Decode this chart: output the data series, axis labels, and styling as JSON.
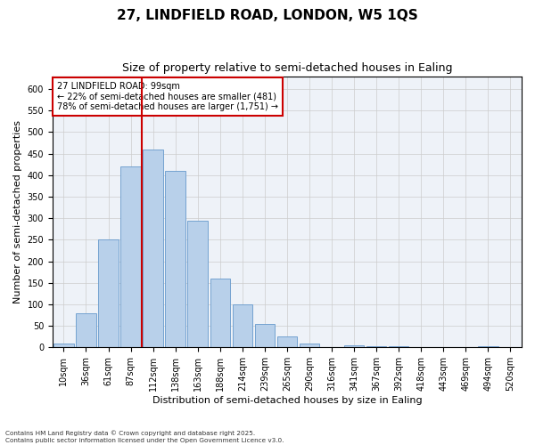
{
  "title_line1": "27, LINDFIELD ROAD, LONDON, W5 1QS",
  "title_line2": "Size of property relative to semi-detached houses in Ealing",
  "xlabel": "Distribution of semi-detached houses by size in Ealing",
  "ylabel": "Number of semi-detached properties",
  "categories": [
    "10sqm",
    "36sqm",
    "61sqm",
    "87sqm",
    "112sqm",
    "138sqm",
    "163sqm",
    "188sqm",
    "214sqm",
    "239sqm",
    "265sqm",
    "290sqm",
    "316sqm",
    "341sqm",
    "367sqm",
    "392sqm",
    "418sqm",
    "443sqm",
    "469sqm",
    "494sqm",
    "520sqm"
  ],
  "bar_heights": [
    8,
    80,
    250,
    420,
    460,
    410,
    295,
    160,
    100,
    55,
    25,
    10,
    0,
    5,
    3,
    3,
    0,
    0,
    0,
    3,
    0
  ],
  "bar_color": "#b8d0ea",
  "bar_edge_color": "#6699cc",
  "grid_color": "#cccccc",
  "bg_color": "#eef2f8",
  "vline_color": "#cc0000",
  "vline_x_index": 3.5,
  "annotation_text": "27 LINDFIELD ROAD: 99sqm\n← 22% of semi-detached houses are smaller (481)\n78% of semi-detached houses are larger (1,751) →",
  "annotation_box_color": "#ffffff",
  "annotation_border_color": "#cc0000",
  "ylim": [
    0,
    630
  ],
  "yticks": [
    0,
    50,
    100,
    150,
    200,
    250,
    300,
    350,
    400,
    450,
    500,
    550,
    600
  ],
  "footnote": "Contains HM Land Registry data © Crown copyright and database right 2025.\nContains public sector information licensed under the Open Government Licence v3.0.",
  "title_fontsize": 11,
  "subtitle_fontsize": 9,
  "ylabel_fontsize": 8,
  "xlabel_fontsize": 8,
  "tick_fontsize": 7,
  "annot_fontsize": 7
}
